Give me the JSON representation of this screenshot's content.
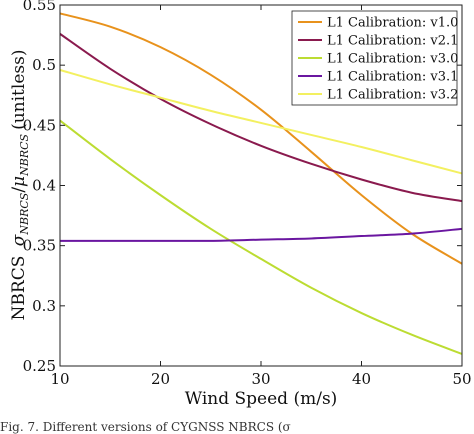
{
  "chart_data": {
    "type": "line",
    "xlabel": "Wind Speed (m/s)",
    "ylabel_main": "NBRCS",
    "ylabel_sigma": "σ",
    "ylabel_sigma_sub": "NBRCS",
    "ylabel_slash": "/",
    "ylabel_mu": "μ",
    "ylabel_mu_sub": "NBRCS",
    "ylabel_unit": "(unitless)",
    "xlim": [
      10,
      50
    ],
    "ylim": [
      0.25,
      0.55
    ],
    "xticks": [
      10,
      20,
      30,
      40,
      50
    ],
    "yticks": [
      0.25,
      0.3,
      0.35,
      0.4,
      0.45,
      0.5,
      0.55
    ],
    "ytick_labels": [
      "0.25",
      "0.3",
      "0.35",
      "0.4",
      "0.45",
      "0.5",
      "0.55"
    ],
    "grid": false,
    "legend_position": "top-right",
    "x": [
      10,
      15,
      20,
      25,
      30,
      35,
      40,
      45,
      50
    ],
    "series": [
      {
        "name": "L1 Calibration: v1.0",
        "color": "#e8921c",
        "values": [
          0.543,
          0.532,
          0.515,
          0.492,
          0.463,
          0.428,
          0.392,
          0.36,
          0.335
        ]
      },
      {
        "name": "L1 Calibration: v2.1",
        "color": "#8a1a4e",
        "values": [
          0.526,
          0.497,
          0.472,
          0.451,
          0.433,
          0.418,
          0.405,
          0.394,
          0.387
        ]
      },
      {
        "name": "L1 Calibration: v3.0",
        "color": "#bcdc32",
        "values": [
          0.454,
          0.422,
          0.392,
          0.364,
          0.339,
          0.315,
          0.294,
          0.276,
          0.26
        ]
      },
      {
        "name": "L1 Calibration: v3.1",
        "color": "#6a16a0",
        "values": [
          0.354,
          0.354,
          0.354,
          0.354,
          0.355,
          0.356,
          0.358,
          0.36,
          0.364
        ]
      },
      {
        "name": "L1 Calibration: v3.2",
        "color": "#f3f060",
        "values": [
          0.496,
          0.484,
          0.473,
          0.462,
          0.452,
          0.442,
          0.432,
          0.421,
          0.41
        ]
      }
    ]
  },
  "caption": "Fig. 7.   Different versions of CYGNSS NBRCS (σ"
}
